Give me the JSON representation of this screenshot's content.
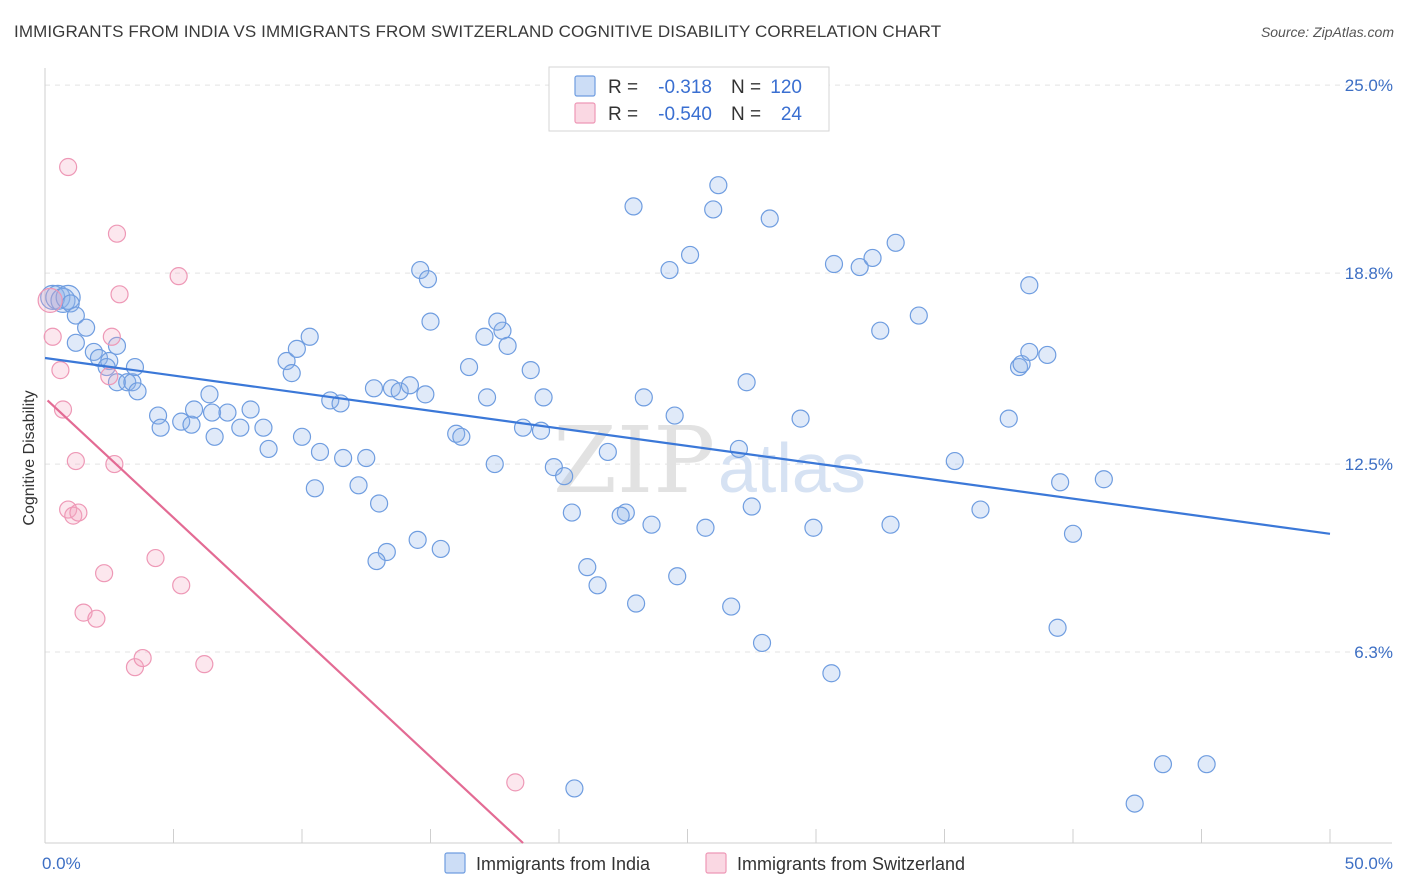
{
  "title": "IMMIGRANTS FROM INDIA VS IMMIGRANTS FROM SWITZERLAND COGNITIVE DISABILITY CORRELATION CHART",
  "source": "Source: ZipAtlas.com",
  "watermark": {
    "zip": "ZIP",
    "atlas": "atlas"
  },
  "legend_top": [
    {
      "r_label": "R =",
      "r_value": "-0.318",
      "n_label": "N =",
      "n_value": "120",
      "color": "#8fb4ea"
    },
    {
      "r_label": "R =",
      "r_value": "-0.540",
      "n_label": "N =",
      "n_value": "24",
      "color": "#f4a8c2"
    }
  ],
  "chart_data": {
    "type": "scatter",
    "title": "IMMIGRANTS FROM INDIA VS IMMIGRANTS FROM SWITZERLAND COGNITIVE DISABILITY CORRELATION CHART",
    "xlabel": "",
    "ylabel": "Cognitive Disability",
    "xlim": [
      0,
      50
    ],
    "ylim": [
      0,
      25.5
    ],
    "x_tick_labels": [
      "0.0%",
      "50.0%"
    ],
    "y_ticks": [
      6.3,
      12.5,
      18.8,
      25.0
    ],
    "y_tick_labels": [
      "6.3%",
      "12.5%",
      "18.8%",
      "25.0%"
    ],
    "grid": "horizontal dashed",
    "legend_placement": "top-center and bottom",
    "series": [
      {
        "name": "Immigrants from India",
        "color": "#8fb4ea",
        "trend": {
          "x": [
            0,
            50
          ],
          "y": [
            16.0,
            10.2
          ],
          "color": "#3b78d8"
        },
        "points": [
          [
            0.3,
            18.0
          ],
          [
            0.5,
            18.0
          ],
          [
            0.7,
            17.9
          ],
          [
            0.9,
            18.0
          ],
          [
            1.0,
            17.8
          ],
          [
            1.2,
            17.4
          ],
          [
            1.6,
            17.0
          ],
          [
            1.2,
            16.5
          ],
          [
            1.9,
            16.2
          ],
          [
            2.8,
            16.4
          ],
          [
            2.1,
            16.0
          ],
          [
            2.8,
            15.2
          ],
          [
            2.5,
            15.9
          ],
          [
            2.4,
            15.7
          ],
          [
            3.2,
            15.2
          ],
          [
            3.4,
            15.2
          ],
          [
            3.6,
            14.9
          ],
          [
            3.5,
            15.7
          ],
          [
            4.4,
            14.1
          ],
          [
            4.5,
            13.7
          ],
          [
            5.3,
            13.9
          ],
          [
            5.7,
            13.8
          ],
          [
            6.4,
            14.8
          ],
          [
            5.8,
            14.3
          ],
          [
            6.5,
            14.2
          ],
          [
            6.6,
            13.4
          ],
          [
            7.1,
            14.2
          ],
          [
            7.6,
            13.7
          ],
          [
            8.0,
            14.3
          ],
          [
            8.7,
            13.0
          ],
          [
            8.5,
            13.7
          ],
          [
            9.4,
            15.9
          ],
          [
            9.6,
            15.5
          ],
          [
            9.8,
            16.3
          ],
          [
            10.3,
            16.7
          ],
          [
            10.0,
            13.4
          ],
          [
            10.7,
            12.9
          ],
          [
            10.5,
            11.7
          ],
          [
            11.1,
            14.6
          ],
          [
            11.5,
            14.5
          ],
          [
            11.6,
            12.7
          ],
          [
            12.2,
            11.8
          ],
          [
            12.5,
            12.7
          ],
          [
            12.8,
            15.0
          ],
          [
            13.0,
            11.2
          ],
          [
            13.3,
            9.6
          ],
          [
            12.9,
            9.3
          ],
          [
            13.5,
            15.0
          ],
          [
            13.8,
            14.9
          ],
          [
            14.2,
            15.1
          ],
          [
            14.8,
            14.8
          ],
          [
            15.0,
            17.2
          ],
          [
            15.4,
            9.7
          ],
          [
            14.5,
            10.0
          ],
          [
            14.6,
            18.9
          ],
          [
            16.0,
            13.5
          ],
          [
            16.2,
            13.4
          ],
          [
            16.5,
            15.7
          ],
          [
            17.2,
            14.7
          ],
          [
            17.1,
            16.7
          ],
          [
            17.8,
            16.9
          ],
          [
            17.5,
            12.5
          ],
          [
            18.0,
            16.4
          ],
          [
            18.6,
            13.7
          ],
          [
            18.9,
            15.6
          ],
          [
            19.3,
            13.6
          ],
          [
            19.8,
            12.4
          ],
          [
            20.2,
            12.1
          ],
          [
            20.5,
            10.9
          ],
          [
            21.1,
            9.1
          ],
          [
            21.5,
            8.5
          ],
          [
            21.9,
            12.9
          ],
          [
            22.6,
            10.9
          ],
          [
            23.0,
            7.9
          ],
          [
            23.3,
            14.7
          ],
          [
            23.6,
            10.5
          ],
          [
            24.3,
            18.9
          ],
          [
            24.6,
            8.8
          ],
          [
            24.5,
            14.1
          ],
          [
            25.1,
            19.4
          ],
          [
            25.7,
            10.4
          ],
          [
            26.2,
            21.7
          ],
          [
            26.0,
            20.9
          ],
          [
            27.0,
            13.0
          ],
          [
            27.3,
            15.2
          ],
          [
            27.5,
            11.1
          ],
          [
            27.9,
            6.6
          ],
          [
            28.2,
            20.6
          ],
          [
            29.4,
            14.0
          ],
          [
            30.7,
            19.1
          ],
          [
            30.6,
            5.6
          ],
          [
            31.7,
            19.0
          ],
          [
            32.5,
            16.9
          ],
          [
            32.9,
            10.5
          ],
          [
            33.1,
            19.8
          ],
          [
            34.0,
            17.4
          ],
          [
            35.4,
            12.6
          ],
          [
            36.4,
            11.0
          ],
          [
            37.5,
            14.0
          ],
          [
            37.9,
            15.7
          ],
          [
            38.0,
            15.8
          ],
          [
            38.3,
            18.4
          ],
          [
            39.0,
            16.1
          ],
          [
            39.5,
            11.9
          ],
          [
            40.0,
            10.2
          ],
          [
            38.3,
            16.2
          ],
          [
            39.4,
            7.1
          ],
          [
            41.2,
            12.0
          ],
          [
            42.4,
            1.3
          ],
          [
            43.5,
            2.6
          ],
          [
            45.2,
            2.6
          ],
          [
            20.6,
            1.8
          ],
          [
            22.9,
            21.0
          ],
          [
            17.6,
            17.2
          ],
          [
            14.9,
            18.6
          ],
          [
            19.4,
            14.7
          ],
          [
            22.4,
            10.8
          ],
          [
            26.7,
            7.8
          ],
          [
            29.9,
            10.4
          ],
          [
            32.2,
            19.3
          ]
        ]
      },
      {
        "name": "Immigrants from Switzerland",
        "color": "#f4a8c2",
        "trend": {
          "x": [
            0.1,
            18.6
          ],
          "y": [
            14.6,
            0.0
          ],
          "color": "#e36b94"
        },
        "points": [
          [
            0.2,
            17.9
          ],
          [
            0.3,
            16.7
          ],
          [
            0.6,
            15.6
          ],
          [
            0.7,
            14.3
          ],
          [
            0.9,
            22.3
          ],
          [
            1.2,
            12.6
          ],
          [
            0.9,
            11.0
          ],
          [
            1.1,
            10.8
          ],
          [
            1.3,
            10.9
          ],
          [
            1.5,
            7.6
          ],
          [
            2.0,
            7.4
          ],
          [
            2.3,
            8.9
          ],
          [
            2.5,
            15.4
          ],
          [
            2.6,
            16.7
          ],
          [
            2.7,
            12.5
          ],
          [
            2.8,
            20.1
          ],
          [
            2.9,
            18.1
          ],
          [
            3.5,
            5.8
          ],
          [
            3.8,
            6.1
          ],
          [
            4.3,
            9.4
          ],
          [
            5.2,
            18.7
          ],
          [
            5.3,
            8.5
          ],
          [
            6.2,
            5.9
          ],
          [
            18.3,
            2.0
          ]
        ]
      }
    ]
  }
}
